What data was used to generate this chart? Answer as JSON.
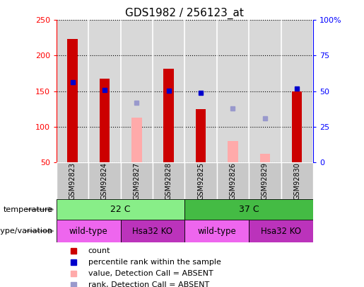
{
  "title": "GDS1982 / 256123_at",
  "samples": [
    "GSM92823",
    "GSM92824",
    "GSM92827",
    "GSM92828",
    "GSM92825",
    "GSM92826",
    "GSM92829",
    "GSM92830"
  ],
  "count_values": [
    223,
    168,
    null,
    182,
    125,
    null,
    null,
    150
  ],
  "count_absent_values": [
    null,
    null,
    113,
    null,
    null,
    80,
    62,
    null
  ],
  "percentile_values": [
    163,
    152,
    null,
    151,
    148,
    null,
    null,
    154
  ],
  "percentile_absent_values": [
    null,
    null,
    134,
    null,
    null,
    126,
    112,
    null
  ],
  "ylim_left": [
    50,
    250
  ],
  "yticks_left": [
    50,
    100,
    150,
    200,
    250
  ],
  "yticks_right": [
    0,
    25,
    50,
    75,
    100
  ],
  "ytick_labels_right": [
    "0",
    "25",
    "50",
    "75",
    "100%"
  ],
  "bar_width": 0.35,
  "count_color": "#cc0000",
  "count_absent_color": "#ffaaaa",
  "percentile_color": "#0000cc",
  "percentile_absent_color": "#9999cc",
  "bg_color": "#ffffff",
  "plot_bg_color": "#d8d8d8",
  "sample_label_bg": "#c8c8c8",
  "temperature_groups": [
    {
      "label": "22 C",
      "cols": [
        0,
        1,
        2,
        3
      ],
      "color": "#88ee88"
    },
    {
      "label": "37 C",
      "cols": [
        4,
        5,
        6,
        7
      ],
      "color": "#44bb44"
    }
  ],
  "genotype_groups": [
    {
      "label": "wild-type",
      "cols": [
        0,
        1
      ],
      "color": "#ee66ee"
    },
    {
      "label": "Hsa32 KO",
      "cols": [
        2,
        3
      ],
      "color": "#bb33bb"
    },
    {
      "label": "wild-type",
      "cols": [
        4,
        5
      ],
      "color": "#ee66ee"
    },
    {
      "label": "Hsa32 KO",
      "cols": [
        6,
        7
      ],
      "color": "#bb33bb"
    }
  ],
  "legend_items": [
    {
      "label": "count",
      "color": "#cc0000"
    },
    {
      "label": "percentile rank within the sample",
      "color": "#0000cc"
    },
    {
      "label": "value, Detection Call = ABSENT",
      "color": "#ffaaaa"
    },
    {
      "label": "rank, Detection Call = ABSENT",
      "color": "#9999cc"
    }
  ]
}
